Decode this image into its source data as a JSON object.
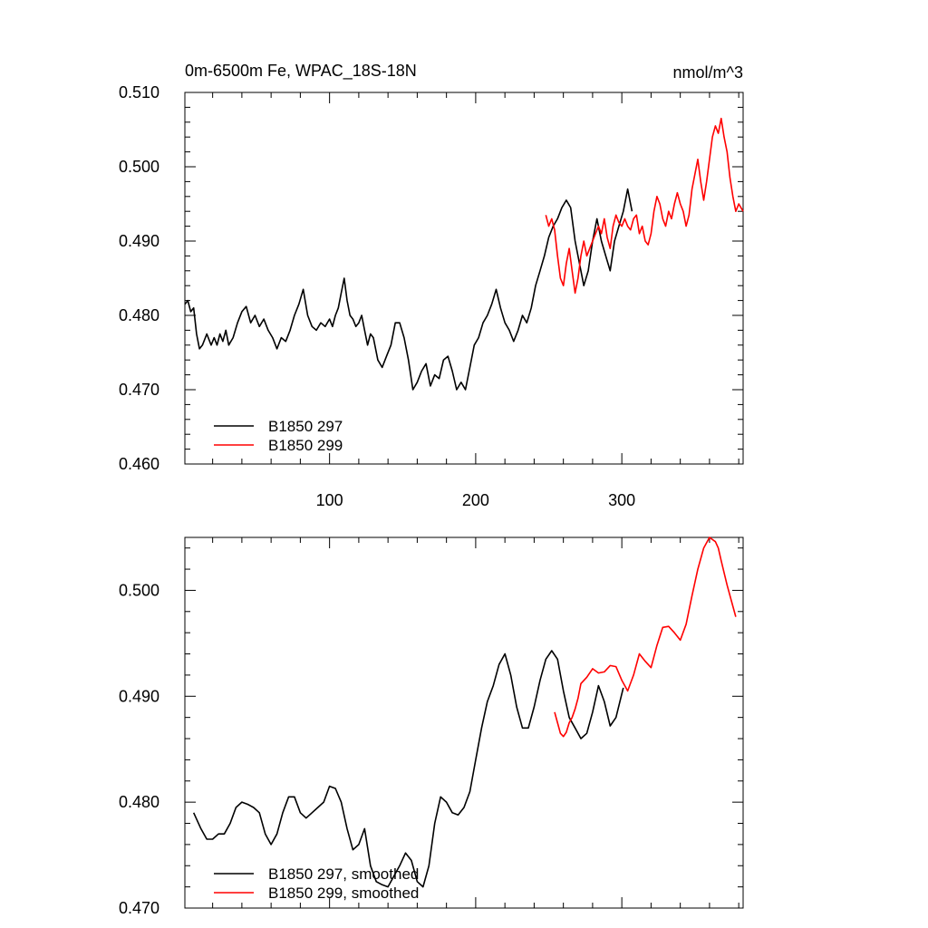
{
  "chart_data": [
    {
      "type": "line",
      "title": "0m-6500m Fe, WPAC_18S-18N",
      "units": "nmol/m^3",
      "xlabel": "",
      "ylabel": "",
      "xlim": [
        1,
        383
      ],
      "ylim": [
        0.46,
        0.51
      ],
      "xticks": [
        100,
        200,
        300
      ],
      "xtick_labels": [
        "100",
        "200",
        "300"
      ],
      "yticks": [
        0.46,
        0.47,
        0.48,
        0.49,
        0.5,
        0.51
      ],
      "ytick_labels": [
        "0.460",
        "0.470",
        "0.480",
        "0.490",
        "0.500",
        "0.510"
      ],
      "legend_position": "bottom-left",
      "series": [
        {
          "name": "B1850 297",
          "color": "#000000",
          "x": [
            1,
            3,
            5,
            7,
            9,
            11,
            13,
            16,
            19,
            21,
            23,
            25,
            27,
            29,
            31,
            34,
            37,
            40,
            43,
            46,
            49,
            52,
            55,
            58,
            61,
            64,
            67,
            70,
            73,
            76,
            79,
            82,
            85,
            88,
            91,
            94,
            97,
            100,
            102,
            104,
            106,
            108,
            110,
            112,
            114,
            116,
            118,
            120,
            122,
            124,
            126,
            128,
            130,
            133,
            136,
            139,
            142,
            145,
            148,
            151,
            154,
            157,
            160,
            163,
            166,
            169,
            172,
            175,
            178,
            181,
            184,
            187,
            190,
            193,
            196,
            199,
            202,
            205,
            208,
            211,
            214,
            217,
            220,
            223,
            226,
            229,
            232,
            235,
            238,
            241,
            244,
            247,
            250,
            253,
            256,
            259,
            262,
            265,
            268,
            271,
            274,
            277,
            280,
            283,
            286,
            289,
            292,
            295,
            298,
            301,
            304,
            307
          ],
          "values": [
            0.4815,
            0.482,
            0.4805,
            0.481,
            0.4775,
            0.4755,
            0.476,
            0.4775,
            0.476,
            0.477,
            0.476,
            0.4775,
            0.4765,
            0.478,
            0.476,
            0.477,
            0.479,
            0.4805,
            0.4812,
            0.479,
            0.48,
            0.4785,
            0.4795,
            0.478,
            0.477,
            0.4755,
            0.477,
            0.4765,
            0.478,
            0.48,
            0.4815,
            0.4835,
            0.48,
            0.4785,
            0.478,
            0.479,
            0.4785,
            0.4795,
            0.4785,
            0.48,
            0.481,
            0.483,
            0.485,
            0.482,
            0.48,
            0.4795,
            0.4785,
            0.479,
            0.48,
            0.478,
            0.476,
            0.4775,
            0.477,
            0.474,
            0.473,
            0.4745,
            0.476,
            0.479,
            0.479,
            0.477,
            0.474,
            0.47,
            0.471,
            0.4725,
            0.4735,
            0.4705,
            0.472,
            0.4715,
            0.474,
            0.4745,
            0.4725,
            0.47,
            0.471,
            0.47,
            0.473,
            0.476,
            0.477,
            0.479,
            0.48,
            0.4815,
            0.4835,
            0.481,
            0.479,
            0.478,
            0.4765,
            0.478,
            0.48,
            0.479,
            0.481,
            0.484,
            0.486,
            0.488,
            0.4905,
            0.492,
            0.493,
            0.4945,
            0.4955,
            0.4945,
            0.49,
            0.487,
            0.484,
            0.486,
            0.49,
            0.493,
            0.49,
            0.488,
            0.486,
            0.49,
            0.492,
            0.494,
            0.497,
            0.494
          ]
        },
        {
          "name": "B1850 299",
          "color": "#ff0000",
          "x": [
            248,
            250,
            252,
            254,
            256,
            258,
            260,
            262,
            264,
            266,
            268,
            270,
            272,
            274,
            276,
            278,
            280,
            282,
            284,
            286,
            288,
            290,
            292,
            294,
            296,
            298,
            300,
            302,
            304,
            306,
            308,
            310,
            312,
            314,
            316,
            318,
            320,
            322,
            324,
            326,
            328,
            330,
            332,
            334,
            336,
            338,
            340,
            342,
            344,
            346,
            348,
            350,
            352,
            354,
            356,
            358,
            360,
            362,
            364,
            366,
            368,
            370,
            372,
            374,
            376,
            378,
            380,
            383
          ],
          "values": [
            0.4935,
            0.492,
            0.493,
            0.4915,
            0.488,
            0.485,
            0.484,
            0.487,
            0.489,
            0.486,
            0.483,
            0.485,
            0.488,
            0.49,
            0.488,
            0.489,
            0.49,
            0.491,
            0.492,
            0.491,
            0.493,
            0.4905,
            0.489,
            0.492,
            0.4935,
            0.4925,
            0.492,
            0.493,
            0.492,
            0.4915,
            0.493,
            0.4935,
            0.491,
            0.492,
            0.49,
            0.4895,
            0.491,
            0.494,
            0.496,
            0.495,
            0.493,
            0.492,
            0.494,
            0.493,
            0.495,
            0.4965,
            0.495,
            0.494,
            0.492,
            0.4935,
            0.497,
            0.499,
            0.501,
            0.498,
            0.4955,
            0.498,
            0.501,
            0.504,
            0.5055,
            0.5045,
            0.5065,
            0.504,
            0.502,
            0.4985,
            0.496,
            0.494,
            0.495,
            0.494
          ]
        }
      ]
    },
    {
      "type": "line",
      "title": "",
      "xlabel": "",
      "ylabel": "",
      "xlim": [
        1,
        383
      ],
      "ylim": [
        0.47,
        0.505
      ],
      "xticks": [
        100,
        200,
        300
      ],
      "yticks": [
        0.47,
        0.48,
        0.49,
        0.5
      ],
      "ytick_labels": [
        "0.470",
        "0.480",
        "0.490",
        "0.500"
      ],
      "legend_position": "bottom-left",
      "series": [
        {
          "name": "B1850 297, smoothed",
          "color": "#000000",
          "x": [
            7,
            12,
            16,
            20,
            24,
            28,
            32,
            36,
            40,
            44,
            48,
            52,
            56,
            60,
            64,
            68,
            72,
            76,
            80,
            84,
            88,
            92,
            96,
            100,
            104,
            108,
            112,
            116,
            120,
            124,
            128,
            132,
            136,
            140,
            144,
            148,
            152,
            156,
            160,
            164,
            168,
            172,
            176,
            180,
            184,
            188,
            192,
            196,
            200,
            204,
            208,
            212,
            216,
            220,
            224,
            228,
            232,
            236,
            240,
            244,
            248,
            252,
            256,
            260,
            264,
            268,
            272,
            276,
            280,
            284,
            288,
            292,
            296,
            301
          ],
          "values": [
            0.479,
            0.4775,
            0.4765,
            0.4765,
            0.477,
            0.477,
            0.478,
            0.4795,
            0.48,
            0.4798,
            0.4795,
            0.479,
            0.477,
            0.476,
            0.477,
            0.479,
            0.4805,
            0.4805,
            0.479,
            0.4785,
            0.479,
            0.4795,
            0.48,
            0.4815,
            0.4813,
            0.48,
            0.4775,
            0.4755,
            0.476,
            0.4775,
            0.474,
            0.4725,
            0.4722,
            0.472,
            0.473,
            0.474,
            0.4752,
            0.4745,
            0.4725,
            0.472,
            0.474,
            0.478,
            0.4805,
            0.48,
            0.479,
            0.4788,
            0.4795,
            0.481,
            0.484,
            0.487,
            0.4895,
            0.491,
            0.493,
            0.494,
            0.492,
            0.489,
            0.487,
            0.487,
            0.489,
            0.4915,
            0.4935,
            0.4943,
            0.4935,
            0.4905,
            0.488,
            0.487,
            0.486,
            0.4865,
            0.4885,
            0.491,
            0.4895,
            0.4872,
            0.488,
            0.4908
          ]
        },
        {
          "name": "B1850 299, smoothed",
          "color": "#ff0000",
          "x": [
            254,
            256,
            258,
            260,
            262,
            264,
            266,
            268,
            270,
            272,
            276,
            280,
            284,
            288,
            292,
            296,
            300,
            304,
            308,
            312,
            316,
            320,
            324,
            328,
            332,
            336,
            340,
            344,
            348,
            352,
            356,
            360,
            364,
            366,
            368,
            372,
            376,
            378
          ],
          "values": [
            0.4885,
            0.4875,
            0.4865,
            0.4862,
            0.4866,
            0.4875,
            0.488,
            0.4888,
            0.4898,
            0.4912,
            0.4918,
            0.4926,
            0.4922,
            0.4923,
            0.4929,
            0.4928,
            0.4915,
            0.4905,
            0.492,
            0.494,
            0.4933,
            0.4927,
            0.4948,
            0.4965,
            0.4966,
            0.496,
            0.4953,
            0.4968,
            0.4995,
            0.502,
            0.504,
            0.505,
            0.5046,
            0.504,
            0.5028,
            0.5005,
            0.4985,
            0.4975
          ]
        }
      ]
    }
  ]
}
